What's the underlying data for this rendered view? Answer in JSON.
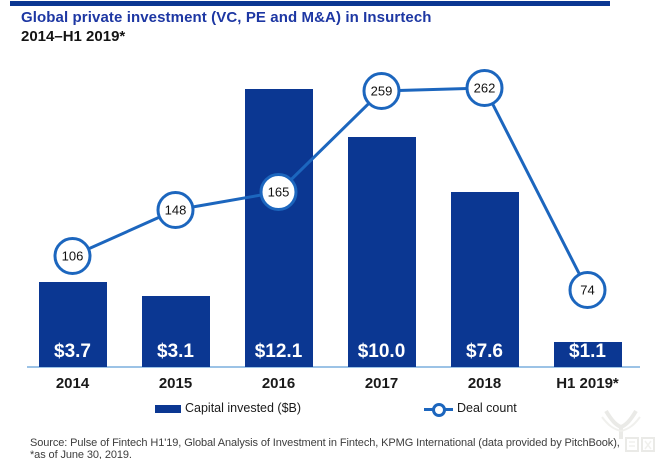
{
  "header": {
    "title": "Global private investment (VC, PE and M&A) in Insurtech",
    "subtitle": "2014–H1 2019*"
  },
  "chart_data": {
    "type": "bar",
    "subtype": "bar-line-combo",
    "categories": [
      "2014",
      "2015",
      "2016",
      "2017",
      "2018",
      "H1 2019*"
    ],
    "series": [
      {
        "name": "Capital invested ($B)",
        "type": "bar",
        "values": [
          3.7,
          3.1,
          12.1,
          10.0,
          7.6,
          1.1
        ],
        "labels": [
          "$3.7",
          "$3.1",
          "$12.1",
          "$10.0",
          "$7.6",
          "$1.1"
        ]
      },
      {
        "name": "Deal count",
        "type": "line",
        "values": [
          106,
          148,
          165,
          259,
          262,
          74
        ],
        "marker": "open-circle-with-value"
      }
    ],
    "title": "Global private investment (VC, PE and M&A) in Insurtech 2014–H1 2019*",
    "xlabel": "",
    "ylabel": "",
    "grid": false,
    "legend_position": "bottom",
    "value_labels_inside_bars": true
  },
  "legend": {
    "capital_label": "Capital invested ($B)",
    "deal_label": "Deal count"
  },
  "footer": {
    "source": "Source: Pulse of Fintech H1'19, Global Analysis of Investment in Fintech, KPMG International (data provided by PitchBook), *as of June 30, 2019."
  },
  "watermark": {
    "name": "iyiou-logo"
  },
  "colors": {
    "bar": "#0b3792",
    "line": "#1c66be",
    "axis_line": "#9cc3e6",
    "title": "#1d37a3",
    "top_bar": "#0b3792",
    "circle_fill": "#ffffff",
    "circle_text": "#111111"
  }
}
